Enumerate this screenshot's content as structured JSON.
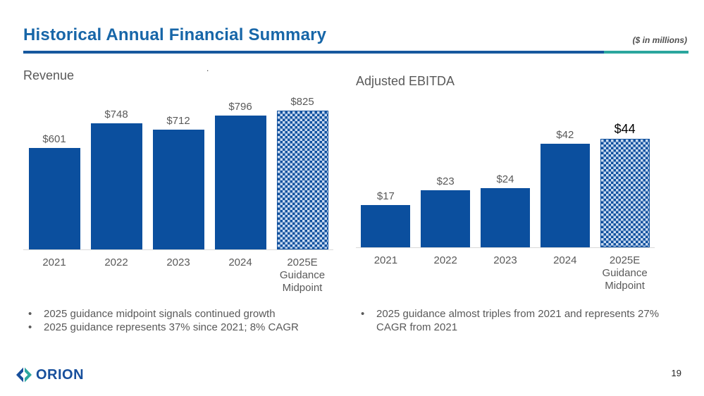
{
  "slide": {
    "title": "Historical Annual Financial Summary",
    "units_note": "($ in millions)",
    "stray_dot": ".",
    "logo_text": "ORION",
    "page_number": "19"
  },
  "colors": {
    "title_blue": "#1766A8",
    "rule_blue": "#17589E",
    "rule_teal": "#2BA69E",
    "bar_blue": "#0B4F9E",
    "pattern_light_blue": "#C8D9F0",
    "text_gray": "#595959",
    "axis_gray": "#D9D9D9",
    "logo_blue": "#174F9C",
    "logo_teal": "#2BA69E"
  },
  "chart_data": [
    {
      "type": "bar",
      "title": "Revenue",
      "categories": [
        "2021",
        "2022",
        "2023",
        "2024",
        "2025E\nGuidance\nMidpoint"
      ],
      "values": [
        601,
        748,
        712,
        796,
        825
      ],
      "value_labels": [
        "$601",
        "$748",
        "$712",
        "$796",
        "$825"
      ],
      "ylabel": "",
      "xlabel": "",
      "ylim": [
        0,
        850
      ],
      "grid": false,
      "legend": false,
      "pattern_bar_index": 4,
      "emphasized_label_index": -1
    },
    {
      "type": "bar",
      "title": "Adjusted EBITDA",
      "categories": [
        "2021",
        "2022",
        "2023",
        "2024",
        "2025E\nGuidance\nMidpoint"
      ],
      "values": [
        17,
        23,
        24,
        42,
        44
      ],
      "value_labels": [
        "$17",
        "$23",
        "$24",
        "$42",
        "$44"
      ],
      "ylabel": "",
      "xlabel": "",
      "ylim": [
        0,
        50
      ],
      "grid": false,
      "legend": false,
      "pattern_bar_index": 4,
      "emphasized_label_index": 4
    }
  ],
  "bullets": {
    "left": [
      "2025 guidance midpoint signals continued growth",
      "2025 guidance represents 37% since 2021; 8% CAGR"
    ],
    "right": [
      "2025 guidance almost triples from 2021 and represents 27% CAGR from 2021"
    ]
  }
}
